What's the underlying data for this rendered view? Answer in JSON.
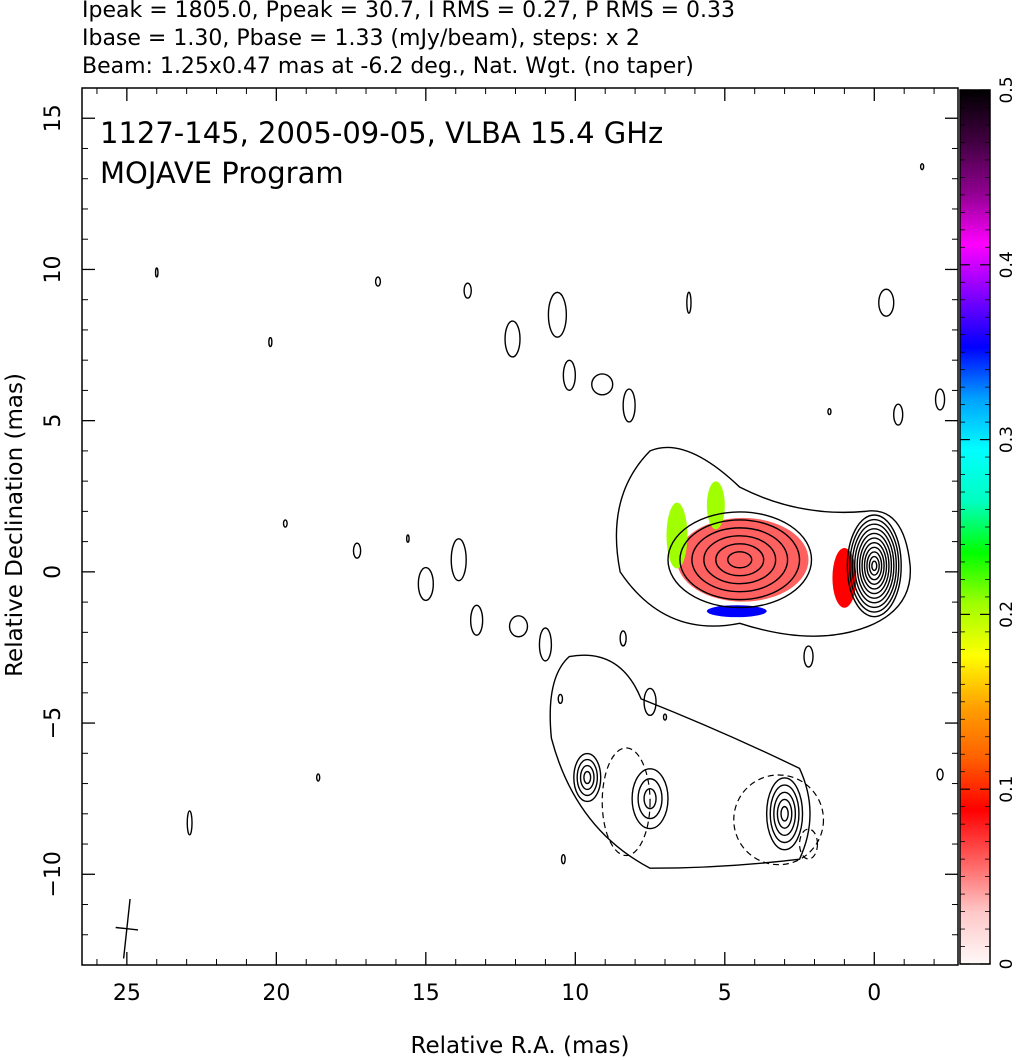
{
  "header": {
    "line1": "Ipeak = 1805.0, Ppeak = 30.7, I RMS = 0.27, P RMS = 0.33",
    "line2": "Ibase = 1.30, Pbase = 1.33 (mJy/beam), steps: x 2",
    "line3": "Beam: 1.25x0.47 mas at -6.2 deg., Nat. Wgt. (no taper)"
  },
  "annotation": {
    "line1": "1127-145, 2005-09-05, VLBA 15.4 GHz",
    "line2": "MOJAVE Program"
  },
  "chart_data": {
    "type": "heatmap",
    "title": "1127-145, 2005-09-05, VLBA 15.4 GHz",
    "subtitle": "MOJAVE Program",
    "xlabel": "Relative R.A. (mas)",
    "ylabel": "Relative Declination (mas)",
    "xlim": [
      26.5,
      -2.8
    ],
    "ylim": [
      -13,
      16
    ],
    "x_ticks": [
      25,
      20,
      15,
      10,
      5,
      0
    ],
    "y_ticks": [
      15,
      10,
      5,
      0,
      -5,
      -10
    ],
    "x_tick_labels": [
      "25",
      "20",
      "15",
      "10",
      "5",
      "0"
    ],
    "y_tick_labels": [
      "15",
      "10",
      "5",
      "0",
      "−5",
      "−10"
    ],
    "colorbar": {
      "range": [
        0,
        0.5
      ],
      "ticks": [
        0,
        0.1,
        0.2,
        0.3,
        0.4,
        0.5
      ],
      "tick_labels": [
        "0",
        "0.1",
        "0.2",
        "0.3",
        "0.4",
        "0.5"
      ],
      "colors": [
        "#fff8f8",
        "#ffc8c8",
        "#ff6060",
        "#ff0000",
        "#ff6000",
        "#ffa000",
        "#ffff00",
        "#a0ff00",
        "#00ff00",
        "#00ffc0",
        "#00ffff",
        "#00a0ff",
        "#0000ff",
        "#8000ff",
        "#ff00ff",
        "#900090",
        "#400040",
        "#000000"
      ]
    },
    "beam": {
      "major_mas": 1.25,
      "minor_mas": 0.47,
      "pa_deg": -6.2,
      "x": 25,
      "y": -11.8
    },
    "contour_base_mJy": 1.3,
    "contour_step": 2,
    "components": [
      {
        "name": "core",
        "x": 0.0,
        "y": 0.2,
        "rx": 0.9,
        "ry": 1.7,
        "levels": 11
      },
      {
        "name": "inner-jet",
        "x": 4.5,
        "y": 0.4,
        "rx": 2.4,
        "ry": 1.6,
        "levels": 6
      },
      {
        "name": "outer-component",
        "x": 3.0,
        "y": -8.0,
        "rx": 0.6,
        "ry": 1.2,
        "levels": 5
      },
      {
        "name": "southern-knot",
        "x": 9.6,
        "y": -6.8,
        "rx": 0.45,
        "ry": 0.8,
        "levels": 4
      },
      {
        "name": "southern-knot-2",
        "x": 7.5,
        "y": -7.5,
        "rx": 0.6,
        "ry": 1.0,
        "levels": 3
      }
    ],
    "polarization_patches": [
      {
        "x": 4.4,
        "y": 0.4,
        "rx": 2.2,
        "ry": 1.4,
        "value": 0.05
      },
      {
        "x": 6.6,
        "y": 1.2,
        "rx": 0.35,
        "ry": 1.1,
        "value": 0.2
      },
      {
        "x": 5.3,
        "y": 2.2,
        "rx": 0.3,
        "ry": 0.8,
        "value": 0.22
      },
      {
        "x": 1.0,
        "y": -0.2,
        "rx": 0.4,
        "ry": 1.0,
        "value": 0.08
      },
      {
        "x": 4.6,
        "y": -1.3,
        "rx": 1.0,
        "ry": 0.2,
        "value": 0.35
      }
    ]
  }
}
